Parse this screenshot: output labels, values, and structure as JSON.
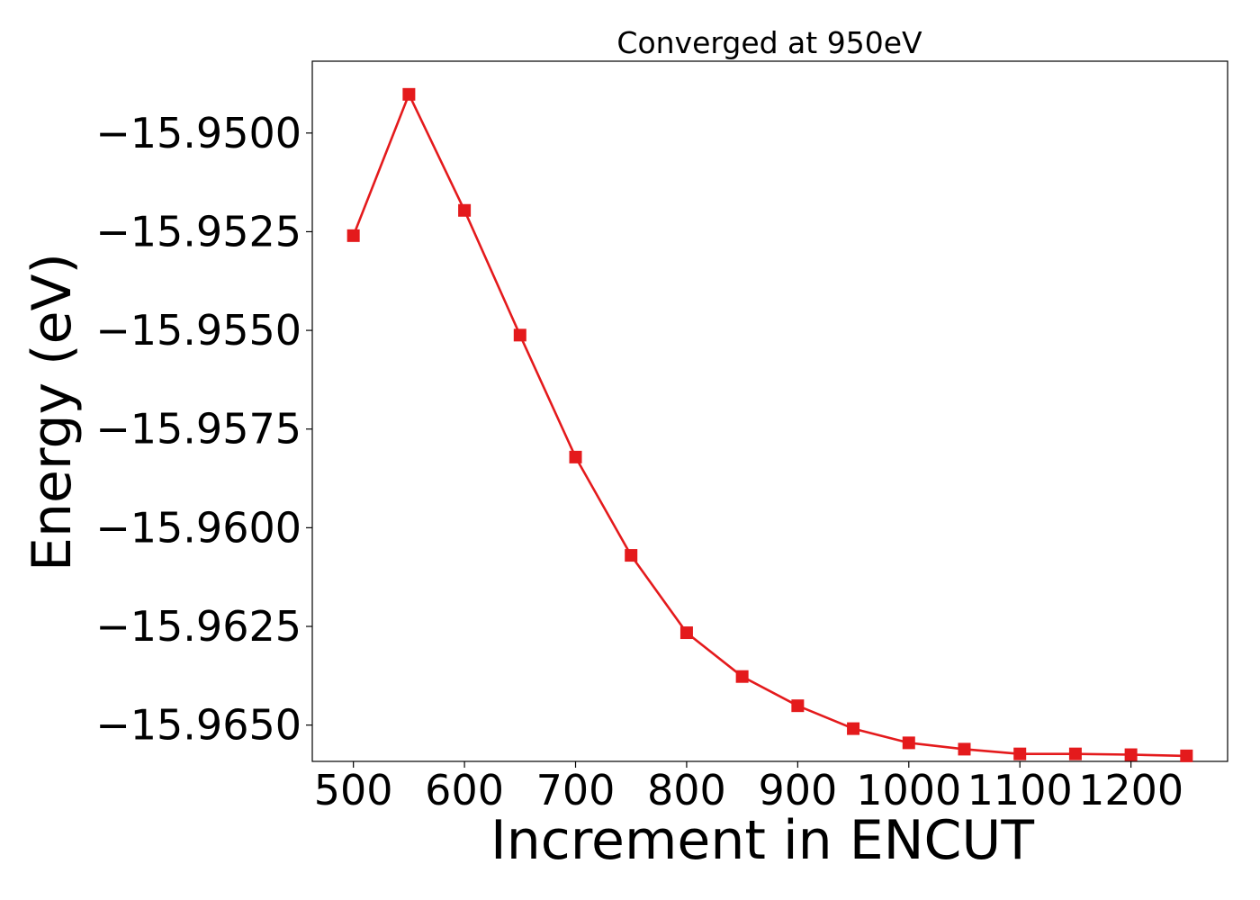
{
  "chart_data": {
    "type": "line",
    "title": "Converged at 950eV",
    "xlabel": "Increment in ENCUT",
    "ylabel": "Energy (eV)",
    "x": [
      500,
      550,
      600,
      650,
      700,
      750,
      800,
      850,
      900,
      950,
      1000,
      1050,
      1100,
      1150,
      1200,
      1250
    ],
    "series": [
      {
        "values": [
          -15.9526,
          -15.94902,
          -15.95196,
          -15.95512,
          -15.95821,
          -15.9607,
          -15.96266,
          -15.96377,
          -15.96451,
          -15.96509,
          -15.96545,
          -15.96561,
          -15.96573,
          -15.96573,
          -15.96575,
          -15.96578
        ],
        "color": "#e41a1c",
        "marker": "square"
      }
    ],
    "xticks": [
      500,
      600,
      700,
      800,
      900,
      1000,
      1100,
      1200
    ],
    "xtick_labels": [
      "500",
      "600",
      "700",
      "800",
      "900",
      "1000",
      "1100",
      "1200"
    ],
    "yticks": [
      -15.95,
      -15.9525,
      -15.955,
      -15.9575,
      -15.96,
      -15.9625,
      -15.965
    ],
    "ytick_labels": [
      "−15.9500",
      "−15.9525",
      "−15.9550",
      "−15.9575",
      "−15.9600",
      "−15.9625",
      "−15.9650"
    ],
    "xlim": [
      463,
      1287
    ],
    "ylim": [
      -15.96592,
      -15.94818
    ],
    "grid": false,
    "legend": "none"
  }
}
